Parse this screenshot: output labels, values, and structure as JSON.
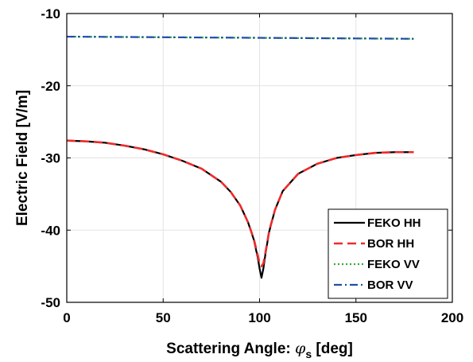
{
  "chart_data": {
    "type": "line",
    "title": "",
    "xlabel": "Scattering Angle: ",
    "xlabel_symbol": "φ",
    "xlabel_subscript": "s",
    "xlabel_unit": " [deg]",
    "ylabel": "Electric Field [V/m]",
    "xlim": [
      0,
      200
    ],
    "ylim": [
      -50,
      -10
    ],
    "xticks": [
      "0",
      "50",
      "100",
      "150",
      "200"
    ],
    "yticks": [
      "-50",
      "-40",
      "-30",
      "-20",
      "-10"
    ],
    "grid": true,
    "legend_position": "lower-right",
    "series": [
      {
        "name": "FEKO HH",
        "color": "#000000",
        "dash": "solid",
        "x": [
          0,
          10,
          20,
          30,
          40,
          50,
          60,
          70,
          80,
          85,
          90,
          94,
          97,
          99,
          100,
          101,
          102,
          103,
          105,
          108,
          112,
          120,
          130,
          140,
          150,
          160,
          170,
          180
        ],
        "y": [
          -27.6,
          -27.7,
          -27.9,
          -28.3,
          -28.8,
          -29.5,
          -30.4,
          -31.5,
          -33.3,
          -34.7,
          -36.6,
          -38.9,
          -41.3,
          -43.7,
          -45.3,
          -46.6,
          -45.3,
          -43.4,
          -40.2,
          -37.2,
          -34.6,
          -32.2,
          -30.8,
          -30.0,
          -29.6,
          -29.3,
          -29.2,
          -29.2
        ]
      },
      {
        "name": "BOR HH",
        "color": "#ee2b2b",
        "dash": "dashed",
        "x": [
          0,
          10,
          20,
          30,
          40,
          50,
          60,
          70,
          80,
          85,
          90,
          94,
          97,
          99,
          100,
          101,
          102,
          103,
          105,
          108,
          112,
          120,
          130,
          140,
          150,
          160,
          170,
          180
        ],
        "y": [
          -27.6,
          -27.7,
          -27.9,
          -28.3,
          -28.8,
          -29.5,
          -30.4,
          -31.5,
          -33.3,
          -34.7,
          -36.6,
          -38.9,
          -41.2,
          -43.4,
          -44.6,
          -45.0,
          -44.6,
          -43.2,
          -40.1,
          -37.2,
          -34.6,
          -32.2,
          -30.8,
          -30.0,
          -29.6,
          -29.3,
          -29.2,
          -29.2
        ]
      },
      {
        "name": "FEKO VV",
        "color": "#3aa83a",
        "dash": "dotted",
        "x": [
          0,
          30,
          60,
          90,
          120,
          150,
          180
        ],
        "y": [
          -13.2,
          -13.25,
          -13.3,
          -13.35,
          -13.4,
          -13.45,
          -13.5
        ]
      },
      {
        "name": "BOR VV",
        "color": "#1f4fa8",
        "dash": "dashdot",
        "x": [
          0,
          30,
          60,
          90,
          120,
          150,
          180
        ],
        "y": [
          -13.2,
          -13.25,
          -13.3,
          -13.35,
          -13.4,
          -13.45,
          -13.5
        ]
      }
    ]
  }
}
